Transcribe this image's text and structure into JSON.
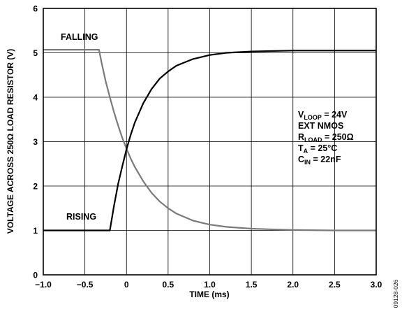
{
  "chart_data": {
    "type": "line",
    "xlabel": "TIME (ms)",
    "ylabel": "VOLTAGE ACROSS 250Ω LOAD RESISTOR (V)",
    "xlim": [
      -1.0,
      3.0
    ],
    "ylim": [
      0,
      6
    ],
    "x_ticks": [
      "−1.0",
      "−0.5",
      "0",
      "0.5",
      "1.0",
      "1.5",
      "2.0",
      "2.5",
      "3.0"
    ],
    "y_ticks": [
      "0",
      "1",
      "2",
      "3",
      "4",
      "5",
      "6"
    ],
    "grid": true,
    "series": [
      {
        "name": "FALLING",
        "color": "#7a7a7a",
        "x": [
          -1.0,
          -0.5,
          -0.33,
          -0.3,
          -0.25,
          -0.2,
          -0.15,
          -0.1,
          -0.05,
          0.0,
          0.05,
          0.1,
          0.2,
          0.3,
          0.4,
          0.5,
          0.6,
          0.8,
          1.0,
          1.2,
          1.5,
          2.0,
          2.5,
          3.0
        ],
        "y": [
          5.07,
          5.07,
          5.07,
          4.78,
          4.36,
          4.0,
          3.66,
          3.36,
          3.08,
          2.84,
          2.62,
          2.43,
          2.11,
          1.85,
          1.65,
          1.5,
          1.38,
          1.22,
          1.13,
          1.08,
          1.04,
          1.01,
          1.0,
          1.0
        ]
      },
      {
        "name": "RISING",
        "color": "#000000",
        "x": [
          -1.0,
          -0.5,
          -0.2,
          -0.15,
          -0.1,
          -0.05,
          0.0,
          0.05,
          0.1,
          0.2,
          0.3,
          0.4,
          0.5,
          0.6,
          0.8,
          1.0,
          1.2,
          1.5,
          2.0,
          2.5,
          3.0
        ],
        "y": [
          1.0,
          1.0,
          1.0,
          1.56,
          2.05,
          2.45,
          2.83,
          3.15,
          3.43,
          3.86,
          4.18,
          4.42,
          4.58,
          4.71,
          4.86,
          4.95,
          5.0,
          5.03,
          5.05,
          5.05,
          5.05
        ]
      }
    ],
    "annotations": {
      "falling": "FALLING",
      "rising": "RISING",
      "conditions": [
        {
          "main": "V",
          "sub": "LOOP",
          "rest": " = 24V"
        },
        {
          "main": "EXT NMOS",
          "sub": "",
          "rest": ""
        },
        {
          "main": "R",
          "sub": "LOAD",
          "rest": " = 250Ω"
        },
        {
          "main": "T",
          "sub": "A",
          "rest": " = 25°C"
        },
        {
          "main": "C",
          "sub": "IN",
          "rest": " = 22nF"
        }
      ]
    },
    "figure_id": "09128-026"
  }
}
